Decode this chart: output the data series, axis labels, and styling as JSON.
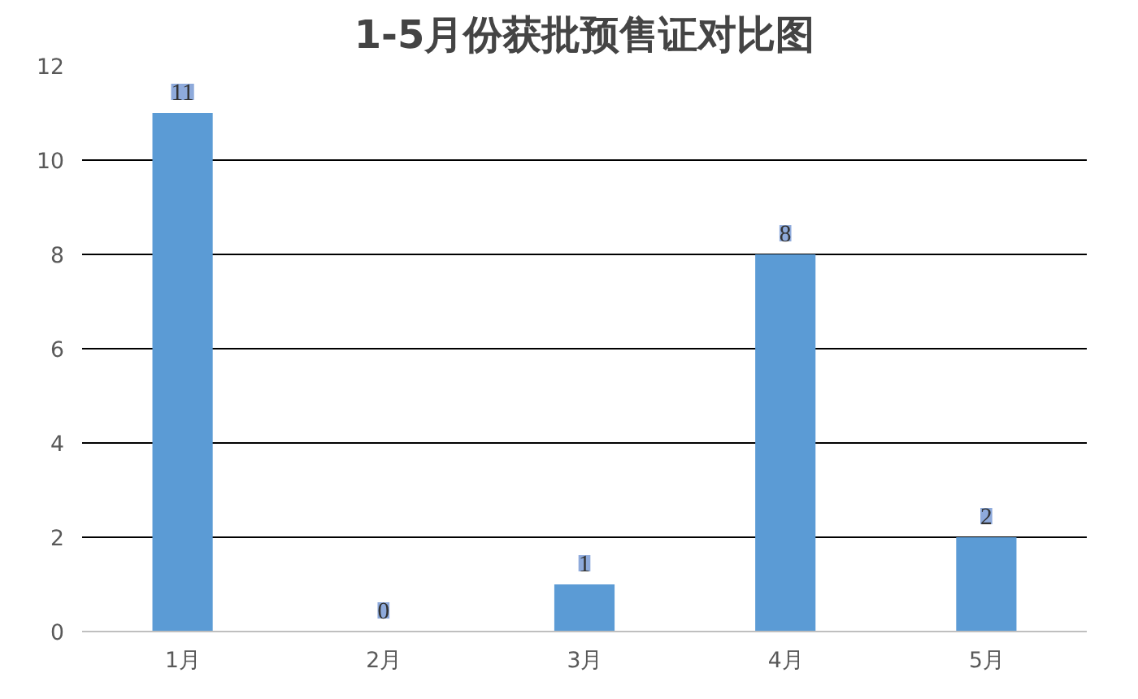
{
  "chart_data": {
    "type": "bar",
    "title": "1-5月份获批预售证对比图",
    "categories": [
      "1月",
      "2月",
      "3月",
      "4月",
      "5月"
    ],
    "values": [
      11,
      0,
      1,
      8,
      2
    ],
    "color": "#5b9bd5",
    "ylim": [
      0,
      12
    ],
    "yticks": [
      0,
      2,
      4,
      6,
      8,
      10,
      12
    ],
    "grid": "y",
    "data_labels": true
  }
}
